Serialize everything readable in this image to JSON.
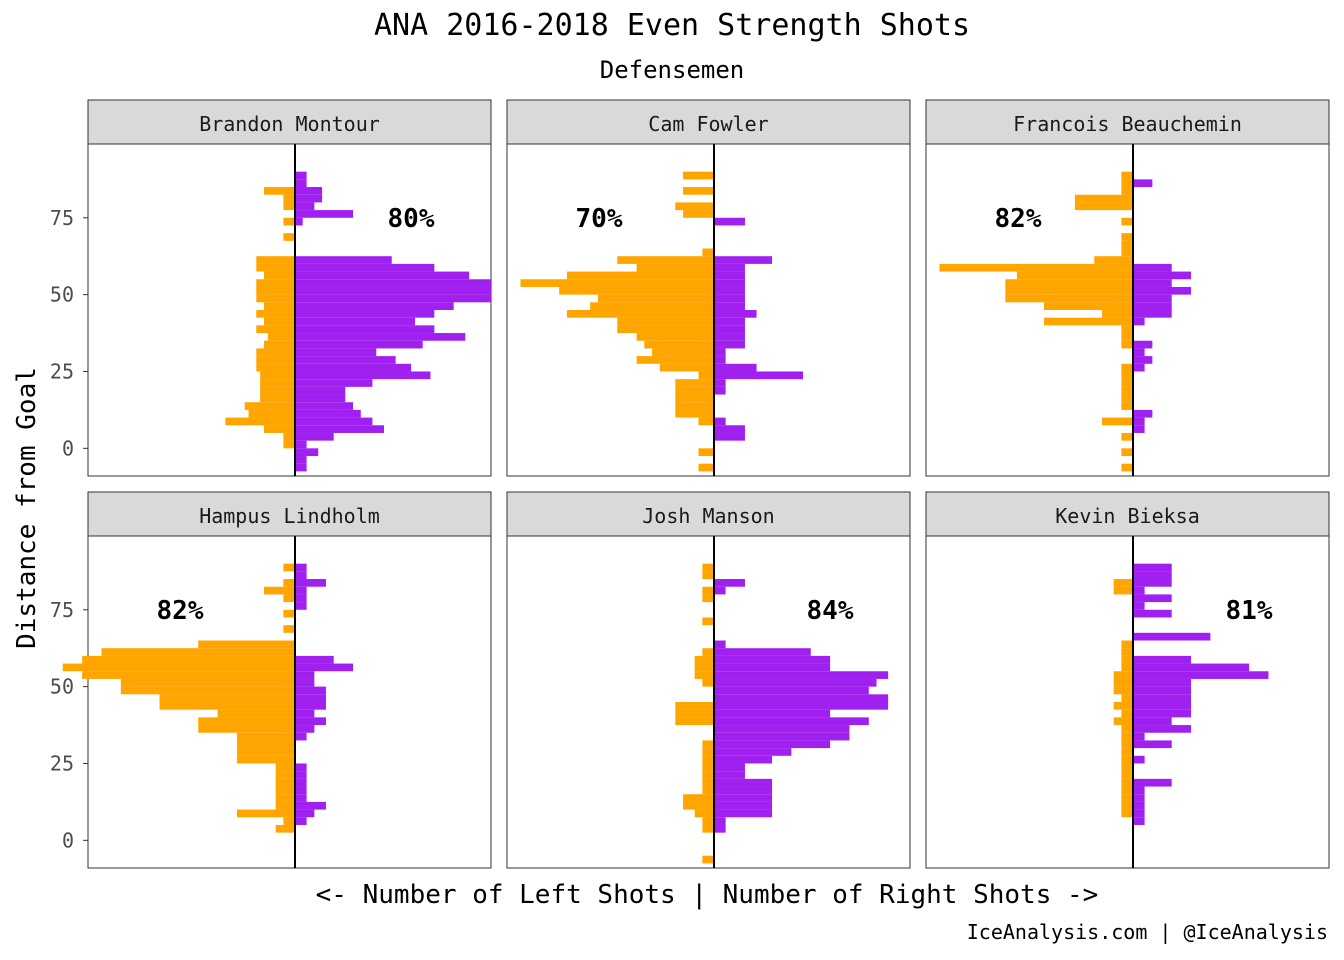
{
  "chart_data": {
    "type": "bar",
    "title": "ANA 2016-2018 Even Strength Shots",
    "subtitle": "Defensemen",
    "xlabel": "<- Number of Left Shots | Number of Right Shots ->",
    "ylabel": "Distance from Goal",
    "yticks": [
      0,
      25,
      50,
      75
    ],
    "ylim": [
      -9,
      99
    ],
    "bin_width": 2.5,
    "bin_starts": [
      -7.5,
      -5,
      -2.5,
      0,
      2.5,
      5,
      7.5,
      10,
      12.5,
      15,
      17.5,
      20,
      22.5,
      25,
      27.5,
      30,
      32.5,
      35,
      37.5,
      40,
      42.5,
      45,
      47.5,
      50,
      52.5,
      55,
      57.5,
      60,
      62.5,
      65,
      67.5,
      70,
      72.5,
      75,
      77.5,
      80,
      82.5,
      85,
      87.5
    ],
    "colors": {
      "left": "#FFA500",
      "right": "#A020F0"
    },
    "panels": [
      {
        "name": "Brandon Montour",
        "pct": "80%",
        "left": [
          0,
          0,
          0,
          3,
          3,
          8,
          18,
          12,
          13,
          9,
          9,
          9,
          9,
          10,
          10,
          10,
          8,
          7,
          10,
          8,
          10,
          8,
          10,
          10,
          10,
          8,
          10,
          10,
          0,
          0,
          3,
          0,
          3,
          0,
          3,
          3,
          8,
          0,
          0
        ],
        "right": [
          3,
          3,
          6,
          3,
          10,
          23,
          20,
          17,
          15,
          13,
          13,
          20,
          35,
          30,
          26,
          21,
          33,
          44,
          36,
          31,
          36,
          41,
          61,
          65,
          62,
          45,
          36,
          25,
          0,
          0,
          0,
          0,
          2,
          15,
          5,
          7,
          7,
          3,
          3
        ]
      },
      {
        "name": "Cam Fowler",
        "pct": "70%",
        "left": [
          4,
          0,
          4,
          0,
          0,
          0,
          4,
          10,
          10,
          10,
          10,
          10,
          4,
          14,
          20,
          16,
          18,
          20,
          25,
          25,
          38,
          32,
          30,
          40,
          50,
          38,
          20,
          25,
          3,
          0,
          0,
          0,
          0,
          8,
          10,
          0,
          8,
          0,
          8
        ],
        "right": [
          0,
          0,
          0,
          0,
          8,
          8,
          3,
          0,
          0,
          0,
          3,
          3,
          23,
          11,
          3,
          3,
          8,
          8,
          8,
          8,
          11,
          8,
          8,
          8,
          8,
          8,
          8,
          15,
          0,
          0,
          0,
          0,
          8,
          0,
          0,
          0,
          0,
          0,
          0
        ]
      },
      {
        "name": "Francois Beauchemin",
        "pct": "82%",
        "left": [
          3,
          0,
          3,
          0,
          3,
          0,
          8,
          0,
          3,
          3,
          3,
          3,
          3,
          3,
          0,
          0,
          3,
          3,
          3,
          23,
          8,
          23,
          33,
          33,
          33,
          30,
          50,
          10,
          3,
          3,
          3,
          0,
          3,
          0,
          15,
          15,
          3,
          3,
          3
        ],
        "right": [
          0,
          0,
          0,
          0,
          0,
          3,
          3,
          5,
          0,
          0,
          0,
          0,
          0,
          3,
          5,
          3,
          5,
          0,
          0,
          3,
          10,
          10,
          10,
          15,
          10,
          15,
          10,
          0,
          0,
          0,
          0,
          0,
          0,
          0,
          0,
          0,
          0,
          5,
          0
        ]
      },
      {
        "name": "Hampus Lindholm",
        "pct": "82%",
        "left": [
          0,
          0,
          0,
          0,
          5,
          3,
          15,
          5,
          5,
          5,
          5,
          5,
          5,
          15,
          15,
          15,
          15,
          25,
          25,
          20,
          35,
          35,
          45,
          45,
          55,
          60,
          55,
          50,
          25,
          0,
          3,
          0,
          3,
          0,
          3,
          8,
          3,
          0,
          3
        ],
        "right": [
          0,
          0,
          0,
          0,
          0,
          3,
          5,
          8,
          3,
          3,
          3,
          3,
          3,
          0,
          0,
          0,
          3,
          5,
          8,
          5,
          8,
          8,
          8,
          5,
          5,
          15,
          10,
          0,
          0,
          0,
          0,
          0,
          0,
          3,
          3,
          3,
          8,
          3,
          3
        ]
      },
      {
        "name": "Josh Manson",
        "pct": "84%",
        "left": [
          3,
          0,
          0,
          0,
          3,
          3,
          5,
          8,
          8,
          3,
          3,
          3,
          3,
          3,
          3,
          3,
          0,
          0,
          10,
          10,
          10,
          0,
          0,
          3,
          5,
          5,
          5,
          3,
          0,
          0,
          0,
          3,
          0,
          0,
          3,
          3,
          0,
          3,
          3
        ],
        "right": [
          0,
          0,
          0,
          0,
          3,
          3,
          15,
          15,
          15,
          15,
          15,
          8,
          8,
          15,
          20,
          30,
          35,
          35,
          40,
          30,
          45,
          45,
          40,
          42,
          45,
          30,
          30,
          25,
          3,
          0,
          0,
          0,
          0,
          0,
          0,
          3,
          8,
          0,
          0
        ]
      },
      {
        "name": "Kevin Bieksa",
        "pct": "81%",
        "left": [
          0,
          0,
          0,
          0,
          0,
          0,
          3,
          3,
          3,
          3,
          3,
          3,
          3,
          3,
          3,
          3,
          3,
          3,
          5,
          3,
          5,
          3,
          5,
          5,
          5,
          3,
          3,
          3,
          3,
          0,
          0,
          0,
          0,
          0,
          0,
          5,
          5,
          0,
          0
        ],
        "right": [
          0,
          0,
          0,
          0,
          0,
          3,
          3,
          3,
          3,
          3,
          10,
          0,
          0,
          3,
          0,
          10,
          3,
          15,
          10,
          15,
          15,
          15,
          15,
          15,
          35,
          30,
          15,
          0,
          0,
          20,
          0,
          0,
          10,
          3,
          10,
          3,
          10,
          10,
          10
        ]
      }
    ]
  },
  "footer": "IceAnalysis.com | @IceAnalysis"
}
